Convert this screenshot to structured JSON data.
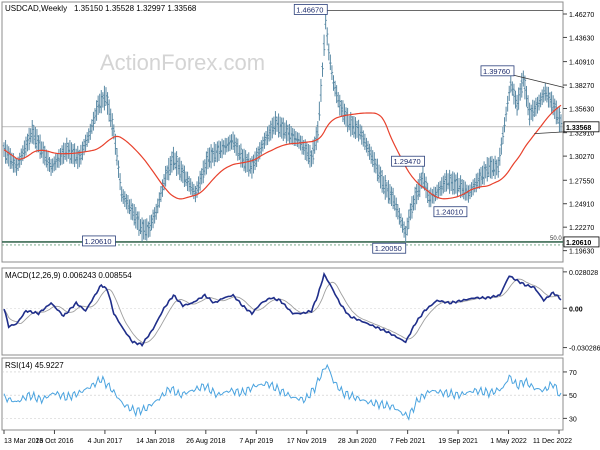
{
  "chart_data": [
    {
      "type": "line",
      "panel": "price",
      "symbol_label": "USDCAD,Weekly",
      "ohlc_label": "1.35150 1.35528 1.32997 1.33568",
      "watermark": "ActionForex.com",
      "ylim": [
        1.1835,
        1.4762
      ],
      "y_ticks": [
        "1.46270",
        "1.43630",
        "1.40910",
        "1.38270",
        "1.35630",
        "1.32910",
        "1.30270",
        "1.27550",
        "1.24910",
        "1.22270",
        "1.19630"
      ],
      "y_tick_values": [
        1.4627,
        1.4363,
        1.4091,
        1.3827,
        1.3563,
        1.3291,
        1.3027,
        1.2755,
        1.2491,
        1.2227,
        1.1963
      ],
      "x_ticks": [
        "13 Mar 2016",
        "23 Oct 2016",
        "4 Jun 2017",
        "14 Jan 2018",
        "26 Aug 2018",
        "7 Apr 2019",
        "17 Nov 2019",
        "28 Jun 2020",
        "7 Feb 2021",
        "19 Sep 2021",
        "1 May 2022",
        "11 Dec 2022"
      ],
      "n_bars": 356,
      "price_anchors": [
        [
          0,
          1.31
        ],
        [
          8,
          1.29
        ],
        [
          18,
          1.33
        ],
        [
          30,
          1.29
        ],
        [
          40,
          1.31
        ],
        [
          48,
          1.3
        ],
        [
          55,
          1.33
        ],
        [
          60,
          1.36
        ],
        [
          65,
          1.37
        ],
        [
          70,
          1.33
        ],
        [
          75,
          1.26
        ],
        [
          82,
          1.24
        ],
        [
          88,
          1.22
        ],
        [
          92,
          1.22
        ],
        [
          97,
          1.24
        ],
        [
          103,
          1.28
        ],
        [
          108,
          1.3
        ],
        [
          115,
          1.28
        ],
        [
          122,
          1.26
        ],
        [
          130,
          1.3
        ],
        [
          138,
          1.31
        ],
        [
          146,
          1.32
        ],
        [
          152,
          1.3
        ],
        [
          158,
          1.29
        ],
        [
          166,
          1.32
        ],
        [
          173,
          1.34
        ],
        [
          180,
          1.33
        ],
        [
          188,
          1.32
        ],
        [
          196,
          1.3
        ],
        [
          200,
          1.33
        ],
        [
          203,
          1.4
        ],
        [
          205,
          1.455
        ],
        [
          207,
          1.42
        ],
        [
          210,
          1.385
        ],
        [
          214,
          1.36
        ],
        [
          220,
          1.34
        ],
        [
          227,
          1.33
        ],
        [
          235,
          1.3
        ],
        [
          242,
          1.27
        ],
        [
          248,
          1.255
        ],
        [
          252,
          1.235
        ],
        [
          256,
          1.215
        ],
        [
          259,
          1.24
        ],
        [
          263,
          1.26
        ],
        [
          267,
          1.28
        ],
        [
          271,
          1.255
        ],
        [
          275,
          1.26
        ],
        [
          282,
          1.275
        ],
        [
          290,
          1.27
        ],
        [
          296,
          1.26
        ],
        [
          302,
          1.275
        ],
        [
          309,
          1.29
        ],
        [
          315,
          1.29
        ],
        [
          320,
          1.35
        ],
        [
          323,
          1.385
        ],
        [
          327,
          1.36
        ],
        [
          331,
          1.39
        ],
        [
          335,
          1.35
        ],
        [
          340,
          1.36
        ],
        [
          345,
          1.375
        ],
        [
          350,
          1.36
        ],
        [
          356,
          1.3357
        ]
      ],
      "current_price": 1.33568,
      "current_price_label": "1.33568",
      "horizontal_level": 1.2061,
      "horizontal_level_label": "1.20610",
      "fib_label": "50.0",
      "annotations": [
        {
          "text": "1.46670",
          "bar": 205,
          "value": 1.4667
        },
        {
          "text": "1.39760",
          "bar": 331,
          "value": 1.3976
        },
        {
          "text": "1.29470",
          "bar": 257,
          "value": 1.2947
        },
        {
          "text": "1.24010",
          "bar": 273,
          "value": 1.2401
        },
        {
          "text": "1.20610",
          "bar": 75,
          "value": 1.2061
        },
        {
          "text": "1.20050",
          "bar": 257,
          "value": 1.2005
        }
      ],
      "triangle": [
        [
          322,
          1.395
        ],
        [
          357,
          1.38
        ],
        [
          338,
          1.328
        ],
        [
          357,
          1.33
        ]
      ],
      "colors": {
        "price": "#5b8aa5",
        "sma": "#e8412c",
        "level": "#3d6b55"
      }
    },
    {
      "type": "line",
      "panel": "macd",
      "label": "MACD(12,26,9) 0.006243 0.008554",
      "ylim": [
        -0.036,
        0.031
      ],
      "y_ticks": [
        "0.028028",
        "0.00",
        "-0.030286"
      ],
      "y_tick_values": [
        0.028028,
        0,
        -0.030286
      ],
      "anchors": [
        [
          0,
          0.0
        ],
        [
          3,
          -0.014
        ],
        [
          8,
          -0.012
        ],
        [
          14,
          -0.002
        ],
        [
          22,
          -0.004
        ],
        [
          30,
          0.004
        ],
        [
          38,
          -0.006
        ],
        [
          46,
          0.004
        ],
        [
          52,
          -0.002
        ],
        [
          58,
          0.01
        ],
        [
          62,
          0.018
        ],
        [
          66,
          0.014
        ],
        [
          70,
          -0.004
        ],
        [
          76,
          -0.016
        ],
        [
          82,
          -0.026
        ],
        [
          88,
          -0.028
        ],
        [
          95,
          -0.016
        ],
        [
          102,
          0.0
        ],
        [
          108,
          0.01
        ],
        [
          114,
          0.002
        ],
        [
          120,
          0.004
        ],
        [
          128,
          0.01
        ],
        [
          134,
          0.004
        ],
        [
          140,
          0.008
        ],
        [
          146,
          0.01
        ],
        [
          152,
          0.002
        ],
        [
          158,
          -0.004
        ],
        [
          164,
          0.004
        ],
        [
          170,
          0.008
        ],
        [
          176,
          0.006
        ],
        [
          184,
          -0.004
        ],
        [
          190,
          -0.004
        ],
        [
          196,
          -0.002
        ],
        [
          200,
          0.01
        ],
        [
          204,
          0.026
        ],
        [
          208,
          0.018
        ],
        [
          214,
          0.004
        ],
        [
          220,
          -0.006
        ],
        [
          228,
          -0.01
        ],
        [
          236,
          -0.014
        ],
        [
          244,
          -0.018
        ],
        [
          250,
          -0.022
        ],
        [
          256,
          -0.026
        ],
        [
          262,
          -0.012
        ],
        [
          268,
          -0.002
        ],
        [
          276,
          0.006
        ],
        [
          284,
          0.004
        ],
        [
          292,
          0.006
        ],
        [
          300,
          0.008
        ],
        [
          308,
          0.008
        ],
        [
          316,
          0.01
        ],
        [
          322,
          0.025
        ],
        [
          326,
          0.022
        ],
        [
          332,
          0.018
        ],
        [
          338,
          0.016
        ],
        [
          344,
          0.006
        ],
        [
          350,
          0.012
        ],
        [
          356,
          0.006
        ]
      ],
      "colors": {
        "macd": "#1f2e8a",
        "signal": "#a0a0a0"
      }
    },
    {
      "type": "line",
      "panel": "rsi",
      "label": "RSI(14) 45.9227",
      "ylim": [
        20,
        82
      ],
      "y_ticks": [
        "70",
        "50",
        "30"
      ],
      "y_tick_values": [
        70,
        50,
        30
      ],
      "anchors": [
        [
          0,
          48
        ],
        [
          8,
          44
        ],
        [
          16,
          50
        ],
        [
          24,
          46
        ],
        [
          32,
          52
        ],
        [
          40,
          48
        ],
        [
          48,
          52
        ],
        [
          56,
          58
        ],
        [
          62,
          64
        ],
        [
          68,
          56
        ],
        [
          76,
          42
        ],
        [
          84,
          36
        ],
        [
          90,
          38
        ],
        [
          98,
          46
        ],
        [
          106,
          56
        ],
        [
          112,
          50
        ],
        [
          120,
          54
        ],
        [
          128,
          58
        ],
        [
          136,
          50
        ],
        [
          144,
          54
        ],
        [
          152,
          52
        ],
        [
          160,
          58
        ],
        [
          168,
          60
        ],
        [
          176,
          54
        ],
        [
          184,
          48
        ],
        [
          192,
          46
        ],
        [
          198,
          56
        ],
        [
          203,
          70
        ],
        [
          206,
          76
        ],
        [
          210,
          62
        ],
        [
          216,
          52
        ],
        [
          224,
          48
        ],
        [
          232,
          44
        ],
        [
          240,
          42
        ],
        [
          248,
          40
        ],
        [
          254,
          34
        ],
        [
          258,
          32
        ],
        [
          264,
          46
        ],
        [
          272,
          54
        ],
        [
          280,
          52
        ],
        [
          290,
          50
        ],
        [
          300,
          54
        ],
        [
          310,
          52
        ],
        [
          318,
          56
        ],
        [
          322,
          66
        ],
        [
          327,
          58
        ],
        [
          332,
          62
        ],
        [
          338,
          56
        ],
        [
          344,
          54
        ],
        [
          350,
          60
        ],
        [
          356,
          46
        ]
      ],
      "color": "#4aa3df"
    }
  ]
}
